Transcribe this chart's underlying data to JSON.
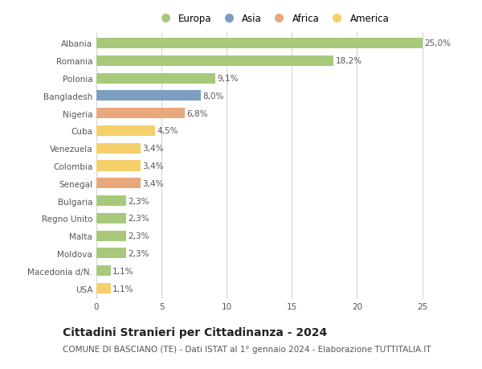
{
  "countries": [
    "Albania",
    "Romania",
    "Polonia",
    "Bangladesh",
    "Nigeria",
    "Cuba",
    "Venezuela",
    "Colombia",
    "Senegal",
    "Bulgaria",
    "Regno Unito",
    "Malta",
    "Moldova",
    "Macedonia d/N.",
    "USA"
  ],
  "values": [
    25.0,
    18.2,
    9.1,
    8.0,
    6.8,
    4.5,
    3.4,
    3.4,
    3.4,
    2.3,
    2.3,
    2.3,
    2.3,
    1.1,
    1.1
  ],
  "labels": [
    "25,0%",
    "18,2%",
    "9,1%",
    "8,0%",
    "6,8%",
    "4,5%",
    "3,4%",
    "3,4%",
    "3,4%",
    "2,3%",
    "2,3%",
    "2,3%",
    "2,3%",
    "1,1%",
    "1,1%"
  ],
  "continents": [
    "Europa",
    "Europa",
    "Europa",
    "Asia",
    "Africa",
    "America",
    "America",
    "America",
    "Africa",
    "Europa",
    "Europa",
    "Europa",
    "Europa",
    "Europa",
    "America"
  ],
  "colors": {
    "Europa": "#a8c97c",
    "Asia": "#7a9fc0",
    "Africa": "#e8a87c",
    "America": "#f5d06a"
  },
  "xlim": [
    0,
    27
  ],
  "xticks": [
    0,
    5,
    10,
    15,
    20,
    25
  ],
  "title": "Cittadini Stranieri per Cittadinanza - 2024",
  "subtitle": "COMUNE DI BASCIANO (TE) - Dati ISTAT al 1° gennaio 2024 - Elaborazione TUTTITALIA.IT",
  "bg_color": "#ffffff",
  "grid_color": "#d0d0d0",
  "bar_height": 0.6,
  "label_fontsize": 7.5,
  "tick_fontsize": 7.5,
  "title_fontsize": 10,
  "subtitle_fontsize": 7.5,
  "legend_entries": [
    "Europa",
    "Asia",
    "Africa",
    "America"
  ]
}
